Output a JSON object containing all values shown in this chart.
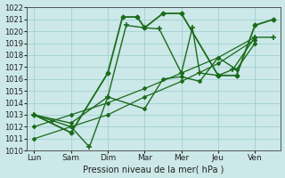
{
  "x_labels": [
    "Lun",
    "Sam",
    "Dim",
    "Mar",
    "Mer",
    "Jeu",
    "Ven"
  ],
  "ylim": [
    1010,
    1022
  ],
  "yticks": [
    1010,
    1011,
    1012,
    1013,
    1014,
    1015,
    1016,
    1017,
    1018,
    1019,
    1020,
    1021,
    1022
  ],
  "xlabel": "Pression niveau de la mer( hPa )",
  "background_color": "#cce8e8",
  "grid_color": "#99cccc",
  "axis_color": "#555555",
  "text_color": "#222222",
  "line_color": "#1a6b1a",
  "series": [
    {
      "name": "s1_zigzag",
      "x": [
        0,
        1,
        2,
        2.4,
        2.8,
        3.0,
        3.5,
        4,
        5,
        5.5,
        6,
        6.5
      ],
      "y": [
        1013,
        1011.5,
        1016.5,
        1021.2,
        1021.2,
        1020.3,
        1021.5,
        1021.5,
        1016.3,
        1016.3,
        1020.5,
        1021.0
      ],
      "lw": 1.3,
      "marker": "D",
      "ms": 2.5
    },
    {
      "name": "s2_plus",
      "x": [
        0,
        0.5,
        1,
        1.5,
        2,
        2.5,
        3,
        3.4,
        4,
        4.3,
        4.5,
        5,
        5.4,
        6,
        6.5
      ],
      "y": [
        1013,
        1012.5,
        1012,
        1010.3,
        1014.5,
        1020.5,
        1020.3,
        1020.2,
        1016.5,
        1020.3,
        1016.5,
        1016.3,
        1016.8,
        1019.5,
        1019.5
      ],
      "lw": 1.0,
      "marker": "+",
      "ms": 4
    },
    {
      "name": "s3_linear_low",
      "x": [
        0,
        1,
        2,
        3,
        4,
        5,
        6
      ],
      "y": [
        1011.0,
        1012.0,
        1013.0,
        1014.5,
        1015.8,
        1017.3,
        1019.3
      ],
      "lw": 0.9,
      "marker": "D",
      "ms": 2.0
    },
    {
      "name": "s4_linear_mid",
      "x": [
        0,
        1,
        2,
        3,
        4,
        5,
        6
      ],
      "y": [
        1012.0,
        1013.0,
        1014.0,
        1015.2,
        1016.5,
        1017.8,
        1019.5
      ],
      "lw": 0.9,
      "marker": "D",
      "ms": 2.0
    },
    {
      "name": "s5_curved",
      "x": [
        0,
        1,
        2,
        3,
        3.5,
        4,
        4.5,
        5,
        5.5,
        6
      ],
      "y": [
        1013,
        1012.3,
        1014.5,
        1013.5,
        1016.0,
        1016.2,
        1015.8,
        1017.8,
        1016.8,
        1019.0
      ],
      "lw": 1.0,
      "marker": "D",
      "ms": 2.0
    }
  ]
}
